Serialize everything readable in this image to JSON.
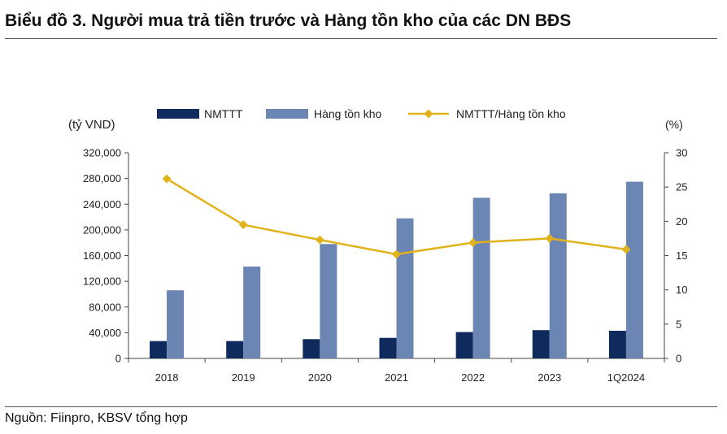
{
  "title": "Biểu đồ 3. Người mua trả tiền trước và Hàng tồn kho của các DN BĐS",
  "source": "Nguồn: Fiinpro, KBSV tổng hợp",
  "chart_data": {
    "type": "bar",
    "categories": [
      "2018",
      "2019",
      "2020",
      "2021",
      "2022",
      "2023",
      "1Q2024"
    ],
    "y_left_label": "(tỷ VND)",
    "y_right_label": "(%)",
    "y_left_range": [
      0,
      320000
    ],
    "y_left_ticks": [
      "0",
      "40,000",
      "80,000",
      "120,000",
      "160,000",
      "200,000",
      "240,000",
      "280,000",
      "320,000"
    ],
    "y_right_range": [
      0,
      30
    ],
    "y_right_ticks": [
      "0",
      "5",
      "10",
      "15",
      "20",
      "25",
      "30"
    ],
    "legend_position": "top",
    "grid": false,
    "series": [
      {
        "name": "NMTTT",
        "type": "bar",
        "axis": "left",
        "color": "#0f2a5c",
        "values": [
          27000,
          27000,
          30000,
          32000,
          41000,
          44000,
          43000
        ]
      },
      {
        "name": "Hàng tồn kho",
        "type": "bar",
        "axis": "left",
        "color": "#6b86b2",
        "values": [
          106000,
          143000,
          178000,
          218000,
          250000,
          257000,
          275000
        ]
      },
      {
        "name": "NMTTT/Hàng tồn kho",
        "type": "line",
        "axis": "right",
        "color": "#e2b21c",
        "values": [
          26.2,
          19.5,
          17.3,
          15.2,
          16.9,
          17.5,
          15.9
        ]
      }
    ]
  }
}
